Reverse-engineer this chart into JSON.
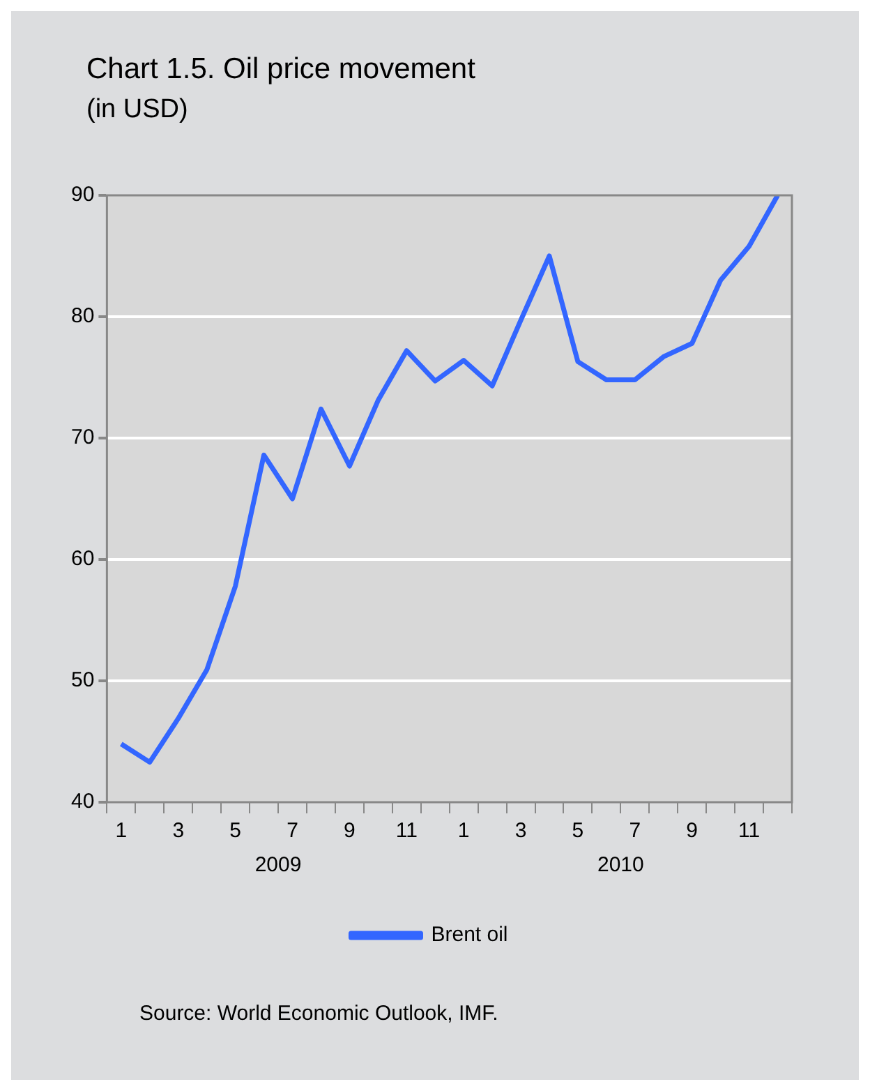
{
  "chart_data": {
    "type": "line",
    "title": "Chart 1.5. Oil price movement",
    "subtitle": "(in USD)",
    "categories": [
      "1",
      null,
      "3",
      null,
      "5",
      null,
      "7",
      null,
      "9",
      null,
      "11",
      null,
      "1",
      null,
      "3",
      null,
      "5",
      null,
      "7",
      null,
      "9",
      null,
      "11",
      null
    ],
    "series": [
      {
        "name": "Brent oil",
        "color": "#3366ff",
        "values": [
          44.8,
          43.3,
          46.9,
          50.9,
          57.8,
          68.6,
          65.0,
          72.4,
          67.7,
          73.1,
          77.2,
          74.7,
          76.4,
          74.3,
          79.7,
          85.0,
          76.3,
          74.8,
          74.8,
          76.7,
          77.8,
          83.0,
          85.8,
          90.0
        ]
      }
    ],
    "ylim": [
      40,
      90
    ],
    "yticks": [
      40,
      50,
      60,
      70,
      80,
      90
    ],
    "grid": "y",
    "legend": "bottom",
    "marker": "none",
    "line_style": "solid",
    "annotations": [
      "2009",
      "2010",
      "Source: World Economic Outlook, IMF."
    ]
  }
}
